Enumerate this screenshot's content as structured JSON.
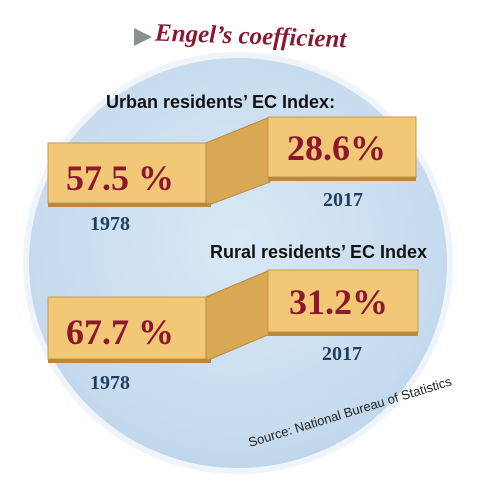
{
  "title": "Engel’s coefficient",
  "urban": {
    "heading": "Urban residents’ EC Index:",
    "value_1978": "57.5 %",
    "value_2017": "28.6%",
    "year_1978": "1978",
    "year_2017": "2017"
  },
  "rural": {
    "heading": "Rural residents’ EC Index",
    "value_1978": "67.7 %",
    "value_2017": "31.2%",
    "year_1978": "1978",
    "year_2017": "2017"
  },
  "source": "Source: National Bureau of Statistics",
  "colors": {
    "circle_fill": "#cfe1f1",
    "circle_edge": "#e4eef8",
    "box_front": "#f2c877",
    "box_side": "#d8a855",
    "box_shadow": "#b8893f",
    "value_text": "#8b1730",
    "title_text": "#8b1730",
    "year_text": "#1f3f5f",
    "heading_text": "#111111",
    "arrow": "#8a9090"
  },
  "icons": [
    "triangle-pointer-icon"
  ]
}
